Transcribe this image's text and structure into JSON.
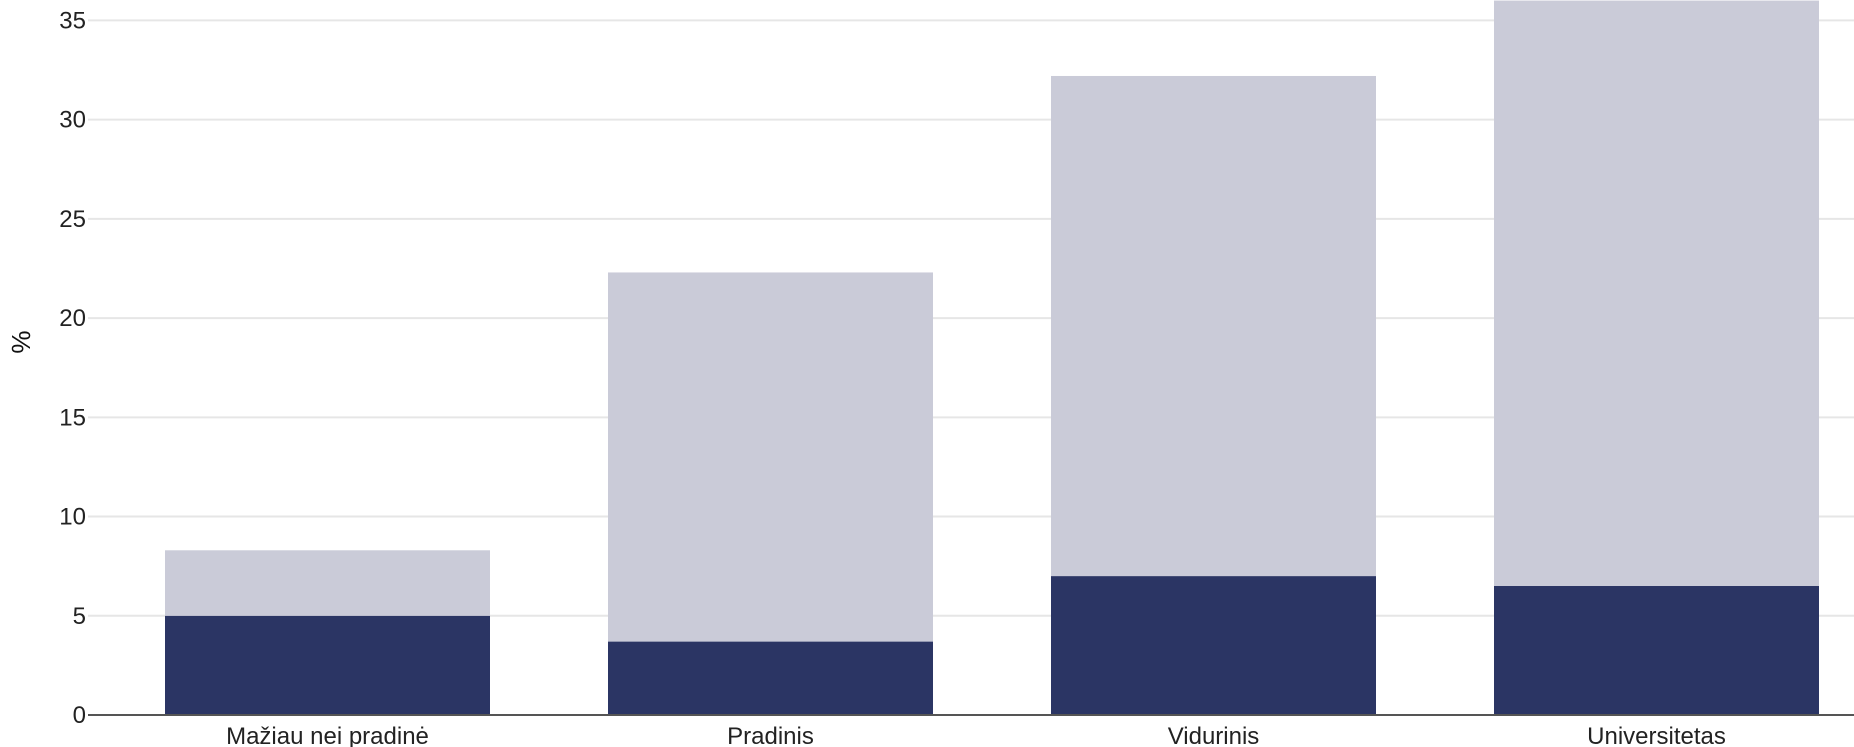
{
  "chart_data": {
    "type": "bar",
    "stacked": true,
    "categories": [
      "Mažiau nei pradinė",
      "Pradinis",
      "Vidurinis",
      "Universitetas"
    ],
    "series": [
      {
        "values": [
          5.0,
          3.7,
          7.0,
          6.5
        ],
        "color": "#2b3564"
      },
      {
        "values": [
          3.3,
          18.6,
          25.2,
          29.5
        ],
        "color": "#cacbd8"
      }
    ],
    "xlabel": "",
    "ylabel": "%",
    "ylim": [
      0,
      36
    ],
    "yticks": [
      0,
      5,
      10,
      15,
      20,
      25,
      30,
      35
    ],
    "grid": true,
    "legend": "none"
  }
}
